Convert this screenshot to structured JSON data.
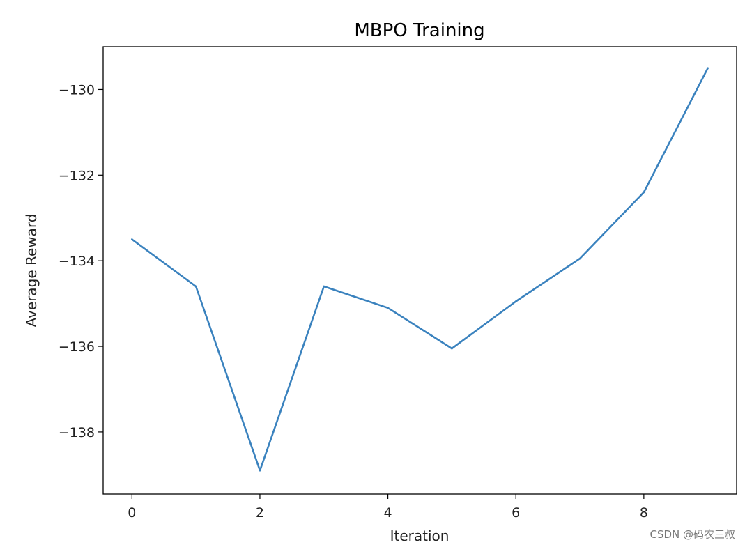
{
  "chart_data": {
    "type": "line",
    "title": "MBPO Training",
    "xlabel": "Iteration",
    "ylabel": "Average Reward",
    "x": [
      0,
      1,
      2,
      3,
      4,
      5,
      6,
      7,
      8,
      9
    ],
    "series": [
      {
        "values": [
          -133.5,
          -134.6,
          -138.9,
          -134.6,
          -135.1,
          -136.05,
          -134.95,
          -133.95,
          -132.4,
          -129.5
        ],
        "color": "#3a82be"
      }
    ],
    "xlim": [
      -0.45,
      9.45
    ],
    "ylim": [
      -139.45,
      -129.0
    ],
    "xticks": [
      0,
      2,
      4,
      6,
      8
    ],
    "yticks": [
      -130,
      -132,
      -134,
      -136,
      -138
    ],
    "xtick_labels": [
      "0",
      "2",
      "4",
      "6",
      "8"
    ],
    "ytick_labels": [
      "−130",
      "−132",
      "−134",
      "−136",
      "−138"
    ],
    "grid": false,
    "legend": "none"
  },
  "watermark": "CSDN @码农三叔"
}
